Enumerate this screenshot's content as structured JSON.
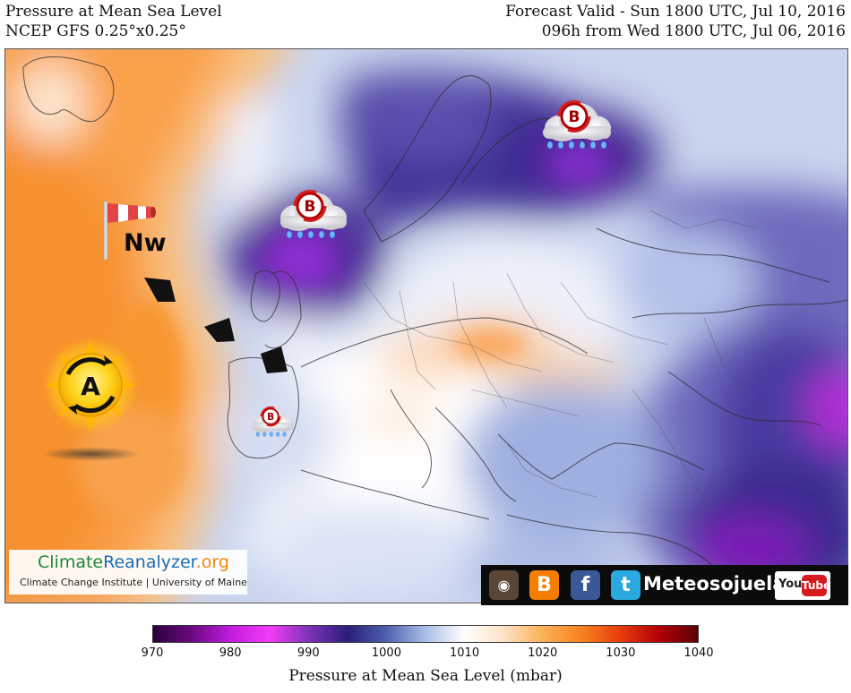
{
  "header": {
    "title": "Pressure at Mean Sea Level",
    "model": "NCEP GFS 0.25°x0.25°",
    "valid": "Forecast Valid - Sun 1800 UTC, Jul 10, 2016",
    "run": "096h from Wed 1800 UTC, Jul 06, 2016"
  },
  "map": {
    "wind_label": "Nw",
    "high_label": "A",
    "low_label": "B",
    "pressure_systems": [
      {
        "type": "high",
        "label": "A",
        "region": "Azores / Atlantic"
      },
      {
        "type": "low",
        "label": "B",
        "region": "North Sea / British Isles",
        "rain": true
      },
      {
        "type": "low",
        "label": "B",
        "region": "Baltic / Gulf of Finland",
        "rain": true
      },
      {
        "type": "low",
        "label": "B",
        "region": "Iberian Peninsula",
        "rain": true
      }
    ],
    "wind_direction": "northwest"
  },
  "branding": {
    "brand_part1": "Climate",
    "brand_part2": "Reanalyzer",
    "brand_part3": ".org",
    "institute": "Climate Change Institute | University of Maine"
  },
  "social": {
    "name": "Meteosojuela",
    "youtube_you": "You",
    "youtube_tube": "Tube",
    "icons": [
      "instagram-icon",
      "blogger-icon",
      "facebook-icon",
      "twitter-icon",
      "youtube-icon"
    ]
  },
  "colorbar": {
    "label": "Pressure at Mean Sea Level (mbar)",
    "ticks": [
      "970",
      "980",
      "990",
      "1000",
      "1010",
      "1020",
      "1030",
      "1040"
    ],
    "min": 970,
    "max": 1040,
    "colors": [
      "#2a003d",
      "#6a0a80",
      "#c21be0",
      "#f33cf6",
      "#7d33b8",
      "#2a1e78",
      "#5061b0",
      "#a9bde6",
      "#ffffff",
      "#fde3c6",
      "#fbb25a",
      "#f7821e",
      "#e83d0c",
      "#b40008",
      "#5a0004"
    ]
  }
}
